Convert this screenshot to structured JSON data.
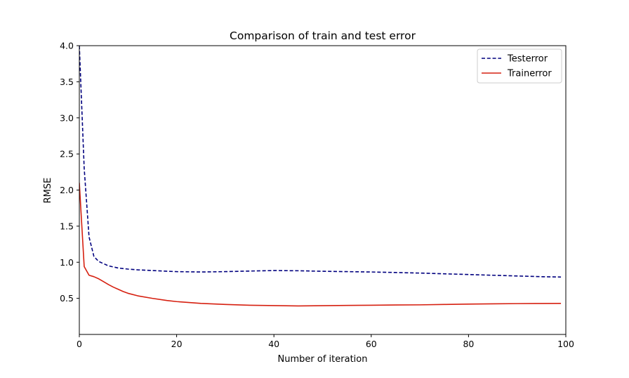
{
  "chart_data": {
    "type": "line",
    "title": "Comparison of train and test error",
    "xlabel": "Number of iteration",
    "ylabel": "RMSE",
    "xlim": [
      0,
      100
    ],
    "ylim": [
      0.0,
      4.0
    ],
    "xticks": [
      0,
      20,
      40,
      60,
      80,
      100
    ],
    "yticks": [
      0.5,
      1.0,
      1.5,
      2.0,
      2.5,
      3.0,
      3.5,
      4.0
    ],
    "xtick_labels": [
      "0",
      "20",
      "40",
      "60",
      "80",
      "100"
    ],
    "ytick_labels": [
      "0.5",
      "1.0",
      "1.5",
      "2.0",
      "2.5",
      "3.0",
      "3.5",
      "4.0"
    ],
    "grid": false,
    "legend_position": "top-right",
    "series": [
      {
        "name": "Testerror",
        "color": "#00007f",
        "style": "dashed",
        "x": [
          0,
          1,
          2,
          3,
          4,
          5,
          6,
          8,
          10,
          12,
          15,
          20,
          25,
          30,
          35,
          40,
          45,
          50,
          55,
          60,
          65,
          70,
          75,
          80,
          85,
          90,
          95,
          99
        ],
        "y": [
          4.0,
          2.3,
          1.35,
          1.08,
          1.01,
          0.98,
          0.95,
          0.92,
          0.905,
          0.895,
          0.885,
          0.87,
          0.865,
          0.87,
          0.878,
          0.885,
          0.882,
          0.875,
          0.87,
          0.865,
          0.858,
          0.85,
          0.84,
          0.83,
          0.82,
          0.81,
          0.8,
          0.795
        ]
      },
      {
        "name": "Trainerror",
        "color": "#d62010",
        "style": "solid",
        "x": [
          0,
          1,
          2,
          3,
          4,
          5,
          6,
          7,
          8,
          9,
          10,
          12,
          15,
          18,
          20,
          25,
          30,
          35,
          40,
          45,
          50,
          55,
          60,
          65,
          70,
          75,
          80,
          85,
          90,
          95,
          99
        ],
        "y": [
          2.1,
          0.94,
          0.82,
          0.8,
          0.77,
          0.73,
          0.69,
          0.655,
          0.625,
          0.595,
          0.57,
          0.535,
          0.5,
          0.47,
          0.455,
          0.43,
          0.415,
          0.405,
          0.4,
          0.395,
          0.398,
          0.402,
          0.405,
          0.408,
          0.41,
          0.415,
          0.42,
          0.424,
          0.427,
          0.429,
          0.43
        ]
      }
    ]
  }
}
